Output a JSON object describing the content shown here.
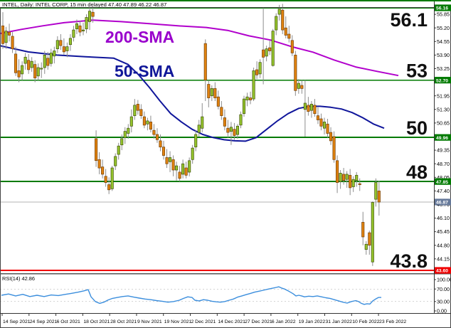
{
  "title_bar": {
    "text": "INTEL, Daily: INTEL CORP, 15 min delayed  47.40 47.89 46.22 46.87",
    "last_quote": {
      "open": 47.4,
      "high": 47.89,
      "low": 46.22,
      "close": 46.87
    }
  },
  "colors": {
    "background": "#ffffff",
    "up_candle": "#94c32c",
    "up_candle_border": "#41530a",
    "down_candle": "#e0820e",
    "down_candle_border": "#74400a",
    "wick": "#8c8c8c",
    "sma200_line": "#b100cc",
    "sma200_label": "#9900cc",
    "sma50_line": "#10169b",
    "sma50_label": "#101799",
    "level_green": "#007a00",
    "level_red": "#f00000",
    "current_price_line": "#b3b3b3",
    "current_badge_bg": "#66799a",
    "rsi_line": "#3b8edd",
    "axis_text": "#000000",
    "big_label": "#101010"
  },
  "chart_data": {
    "type": "candlestick",
    "title": "INTEL, Daily: INTEL CORP, 15 min delayed  47.40 47.89 46.22 46.87",
    "symbol": "INTEL CORP",
    "timeframe": "Daily",
    "ylim": [
      43.6,
      56.16
    ],
    "grid": false,
    "annotations": {
      "sma200_label": "200-SMA",
      "sma50_label": "50-SMA"
    },
    "levels": [
      {
        "value": 56.16,
        "badge": "56.16",
        "label": "56.1",
        "type": "green",
        "label_side": "below"
      },
      {
        "value": 52.7,
        "badge": "52.70",
        "label": "53",
        "type": "green",
        "label_side": "above"
      },
      {
        "value": 49.96,
        "badge": "49.96",
        "label": "50",
        "type": "green",
        "label_side": "above"
      },
      {
        "value": 47.85,
        "badge": "47.85",
        "label": "48",
        "type": "green",
        "label_side": "above"
      },
      {
        "value": 43.6,
        "badge": "43.60",
        "label": "43.8",
        "type": "red",
        "label_side": "above"
      }
    ],
    "current_price": {
      "value": 46.87,
      "badge": "46.87"
    },
    "price_axis_ticks": [
      "55.85",
      "55.20",
      "54.55",
      "53.90",
      "53.25",
      "51.95",
      "51.30",
      "50.65",
      "49.35",
      "48.70",
      "48.05",
      "47.40",
      "46.75",
      "46.10",
      "45.45",
      "44.80",
      "44.15"
    ],
    "x_axis_dates": [
      "14 Sep 2021",
      "24 Sep 2021",
      "6 Oct 2021",
      "18 Oct 2021",
      "28 Oct 2021",
      "9 Nov 2021",
      "19 Nov 2021",
      "2 Dec 2021",
      "14 Dec 2021",
      "27 Dec 2021",
      "6 Jan 2022",
      "19 Jan 2022",
      "31 Jan 2022",
      "10 Feb 2022",
      "23 Feb 2022"
    ],
    "candles_ohlc": [
      [
        55.3,
        55.95,
        54.2,
        54.45
      ],
      [
        54.5,
        55.25,
        54.2,
        55.05
      ],
      [
        55.0,
        55.4,
        54.55,
        54.85
      ],
      [
        54.8,
        55.0,
        54.0,
        54.2
      ],
      [
        53.95,
        54.3,
        52.9,
        53.05
      ],
      [
        53.15,
        53.7,
        52.6,
        52.85
      ],
      [
        53.0,
        53.6,
        52.7,
        53.4
      ],
      [
        53.5,
        54.0,
        53.2,
        53.8
      ],
      [
        53.65,
        53.95,
        53.0,
        53.2
      ],
      [
        53.3,
        53.8,
        53.1,
        53.6
      ],
      [
        53.45,
        53.65,
        52.6,
        52.8
      ],
      [
        52.9,
        53.5,
        52.7,
        53.3
      ],
      [
        53.25,
        53.55,
        52.8,
        53.25
      ],
      [
        53.3,
        54.1,
        53.0,
        53.9
      ],
      [
        53.75,
        54.05,
        53.2,
        53.4
      ],
      [
        53.5,
        54.2,
        53.35,
        54.0
      ],
      [
        53.85,
        54.3,
        53.5,
        54.1
      ],
      [
        54.2,
        54.8,
        54.0,
        54.6
      ],
      [
        54.6,
        54.9,
        54.15,
        54.35
      ],
      [
        54.3,
        54.7,
        53.9,
        54.05
      ],
      [
        54.1,
        54.5,
        53.8,
        54.3
      ],
      [
        54.4,
        54.9,
        54.1,
        54.7
      ],
      [
        54.75,
        55.3,
        54.55,
        55.1
      ],
      [
        55.15,
        55.6,
        54.9,
        55.4
      ],
      [
        55.3,
        55.55,
        54.8,
        55.0
      ],
      [
        55.05,
        55.45,
        54.85,
        55.1
      ],
      [
        55.15,
        55.85,
        54.95,
        55.7
      ],
      [
        55.5,
        56.2,
        55.1,
        56.0
      ],
      [
        55.95,
        56.35,
        55.45,
        55.75
      ],
      [
        49.9,
        50.3,
        48.55,
        48.85
      ],
      [
        48.9,
        49.25,
        48.2,
        48.5
      ],
      [
        48.55,
        48.9,
        48.0,
        48.2
      ],
      [
        48.1,
        48.45,
        47.6,
        47.8
      ],
      [
        47.7,
        48.05,
        47.25,
        47.45
      ],
      [
        47.5,
        48.6,
        47.4,
        48.5
      ],
      [
        48.6,
        49.2,
        48.4,
        49.05
      ],
      [
        49.15,
        49.7,
        48.9,
        49.55
      ],
      [
        49.6,
        50.1,
        49.35,
        49.9
      ],
      [
        49.95,
        50.45,
        49.65,
        50.25
      ],
      [
        50.15,
        50.6,
        49.9,
        50.4
      ],
      [
        50.5,
        51.3,
        50.2,
        50.95
      ],
      [
        51.0,
        51.8,
        50.8,
        51.5
      ],
      [
        51.55,
        51.75,
        51.05,
        51.25
      ],
      [
        51.3,
        51.55,
        50.85,
        51.0
      ],
      [
        50.95,
        51.2,
        50.4,
        50.55
      ],
      [
        50.6,
        50.9,
        50.3,
        50.75
      ],
      [
        50.7,
        51.0,
        50.2,
        50.35
      ],
      [
        50.3,
        50.6,
        49.9,
        50.1
      ],
      [
        50.1,
        50.4,
        49.7,
        49.85
      ],
      [
        49.8,
        50.1,
        49.3,
        49.5
      ],
      [
        49.5,
        49.8,
        48.9,
        49.1
      ],
      [
        49.0,
        49.4,
        48.5,
        48.7
      ],
      [
        48.8,
        49.3,
        48.3,
        49.0
      ],
      [
        48.9,
        49.1,
        48.1,
        48.4
      ],
      [
        48.4,
        48.8,
        47.9,
        48.6
      ],
      [
        48.3,
        48.6,
        47.85,
        48.0
      ],
      [
        48.2,
        48.9,
        48.0,
        48.7
      ],
      [
        48.5,
        48.8,
        48.0,
        48.15
      ],
      [
        48.3,
        49.0,
        48.1,
        48.85
      ],
      [
        48.9,
        49.6,
        48.7,
        49.45
      ],
      [
        49.5,
        50.3,
        49.3,
        50.1
      ],
      [
        50.2,
        50.8,
        50.0,
        50.55
      ],
      [
        50.4,
        51.6,
        50.2,
        50.95
      ],
      [
        54.45,
        54.65,
        51.7,
        52.7
      ],
      [
        52.5,
        52.7,
        51.4,
        51.85
      ],
      [
        51.95,
        52.45,
        51.7,
        52.3
      ],
      [
        52.3,
        52.6,
        51.7,
        51.85
      ],
      [
        51.9,
        52.2,
        51.3,
        51.45
      ],
      [
        51.4,
        51.7,
        50.8,
        51.0
      ],
      [
        50.9,
        51.3,
        50.3,
        50.5
      ],
      [
        50.4,
        50.8,
        49.95,
        50.2
      ],
      [
        50.25,
        50.7,
        49.6,
        50.45
      ],
      [
        50.35,
        50.65,
        49.85,
        50.05
      ],
      [
        50.1,
        50.6,
        49.9,
        50.5
      ],
      [
        50.55,
        51.2,
        50.4,
        51.05
      ],
      [
        51.1,
        51.95,
        50.95,
        51.8
      ],
      [
        51.75,
        52.1,
        51.45,
        51.9
      ],
      [
        51.85,
        52.15,
        51.55,
        51.75
      ],
      [
        51.8,
        53.3,
        51.7,
        53.15
      ],
      [
        53.2,
        53.6,
        52.75,
        52.95
      ],
      [
        53.0,
        53.7,
        52.8,
        53.55
      ],
      [
        54.15,
        56.15,
        52.5,
        53.8
      ],
      [
        53.85,
        54.35,
        53.6,
        54.2
      ],
      [
        54.25,
        54.6,
        53.9,
        54.1
      ],
      [
        53.4,
        55.15,
        53.35,
        55.05
      ],
      [
        55.1,
        55.9,
        54.85,
        55.75
      ],
      [
        55.85,
        56.3,
        55.55,
        56.1
      ],
      [
        56.05,
        56.35,
        54.9,
        55.1
      ],
      [
        55.2,
        55.75,
        54.7,
        54.85
      ],
      [
        54.9,
        55.3,
        54.5,
        54.7
      ],
      [
        54.6,
        54.85,
        53.85,
        54.0
      ],
      [
        53.9,
        54.1,
        51.95,
        52.2
      ],
      [
        52.3,
        52.75,
        52.05,
        52.55
      ],
      [
        52.45,
        52.7,
        52.05,
        52.3
      ],
      [
        51.3,
        52.7,
        50.0,
        51.6
      ],
      [
        51.5,
        51.9,
        51.0,
        51.2
      ],
      [
        51.25,
        51.7,
        50.9,
        51.55
      ],
      [
        51.5,
        51.8,
        50.95,
        51.1
      ],
      [
        51.0,
        51.4,
        50.6,
        50.8
      ],
      [
        50.85,
        51.1,
        50.3,
        50.5
      ],
      [
        50.4,
        50.9,
        50.1,
        50.7
      ],
      [
        50.6,
        50.85,
        49.95,
        50.15
      ],
      [
        50.2,
        50.45,
        49.6,
        49.8
      ],
      [
        50.0,
        50.25,
        48.75,
        48.9
      ],
      [
        48.85,
        49.1,
        47.3,
        47.8
      ],
      [
        47.85,
        48.4,
        47.5,
        48.25
      ],
      [
        48.2,
        48.5,
        47.7,
        47.9
      ],
      [
        47.95,
        48.35,
        47.55,
        48.2
      ],
      [
        48.15,
        48.45,
        47.2,
        47.55
      ],
      [
        47.6,
        48.1,
        47.35,
        47.95
      ],
      [
        47.9,
        48.3,
        47.6,
        48.15
      ],
      [
        47.75,
        48.0,
        47.4,
        47.7
      ],
      [
        45.9,
        46.4,
        44.8,
        45.2
      ],
      [
        44.6,
        45.0,
        44.35,
        44.85
      ],
      [
        45.4,
        45.5,
        44.35,
        44.8
      ],
      [
        44.0,
        46.9,
        43.81,
        46.85
      ],
      [
        47.0,
        48.0,
        46.65,
        47.8
      ],
      [
        47.4,
        47.89,
        46.22,
        46.87
      ]
    ],
    "sma200": [
      [
        0,
        54.93
      ],
      [
        30,
        55.13
      ],
      [
        60,
        55.3
      ],
      [
        90,
        55.45
      ],
      [
        130,
        55.57
      ],
      [
        170,
        55.5
      ],
      [
        210,
        55.4
      ],
      [
        250,
        55.3
      ],
      [
        290,
        55.22
      ],
      [
        320,
        55.08
      ],
      [
        350,
        54.82
      ],
      [
        380,
        54.62
      ],
      [
        410,
        54.3
      ],
      [
        440,
        54.04
      ],
      [
        470,
        53.66
      ],
      [
        500,
        53.33
      ],
      [
        530,
        53.12
      ],
      [
        560,
        52.92
      ]
    ],
    "sma50": [
      [
        0,
        54.35
      ],
      [
        40,
        54.05
      ],
      [
        80,
        53.9
      ],
      [
        120,
        53.82
      ],
      [
        160,
        53.75
      ],
      [
        180,
        53.45
      ],
      [
        195,
        52.95
      ],
      [
        210,
        52.35
      ],
      [
        225,
        51.7
      ],
      [
        240,
        51.1
      ],
      [
        255,
        50.7
      ],
      [
        270,
        50.35
      ],
      [
        285,
        50.1
      ],
      [
        300,
        49.95
      ],
      [
        315,
        49.85
      ],
      [
        330,
        49.8
      ],
      [
        345,
        49.78
      ],
      [
        360,
        49.95
      ],
      [
        375,
        50.35
      ],
      [
        390,
        50.75
      ],
      [
        405,
        51.1
      ],
      [
        420,
        51.35
      ],
      [
        435,
        51.45
      ],
      [
        450,
        51.45
      ],
      [
        465,
        51.4
      ],
      [
        480,
        51.32
      ],
      [
        495,
        51.15
      ],
      [
        510,
        50.9
      ],
      [
        525,
        50.6
      ],
      [
        540,
        50.4
      ]
    ],
    "rsi_panel": {
      "label": "RSI(14) 42.86",
      "value": 42.86,
      "range": [
        0,
        100
      ],
      "guides": [
        70,
        30
      ],
      "axis_ticks": [
        {
          "label": "100.00",
          "v": 100
        },
        {
          "label": "70.00",
          "v": 70
        },
        {
          "label": "30.00",
          "v": 30
        },
        {
          "label": "0.00",
          "v": 0
        }
      ],
      "points": [
        [
          2,
          50
        ],
        [
          12,
          54
        ],
        [
          22,
          48
        ],
        [
          32,
          53
        ],
        [
          42,
          46
        ],
        [
          52,
          50
        ],
        [
          62,
          46
        ],
        [
          72,
          51
        ],
        [
          82,
          49
        ],
        [
          92,
          53
        ],
        [
          100,
          56
        ],
        [
          110,
          60
        ],
        [
          118,
          64
        ],
        [
          124,
          68
        ],
        [
          128,
          45
        ],
        [
          134,
          30
        ],
        [
          140,
          24
        ],
        [
          146,
          28
        ],
        [
          152,
          35
        ],
        [
          158,
          40
        ],
        [
          165,
          43
        ],
        [
          172,
          46
        ],
        [
          180,
          48
        ],
        [
          188,
          44
        ],
        [
          196,
          41
        ],
        [
          204,
          38
        ],
        [
          212,
          36
        ],
        [
          220,
          33
        ],
        [
          228,
          31
        ],
        [
          236,
          28
        ],
        [
          244,
          30
        ],
        [
          252,
          34
        ],
        [
          258,
          40
        ],
        [
          264,
          45
        ],
        [
          270,
          43
        ],
        [
          274,
          34
        ],
        [
          280,
          32
        ],
        [
          286,
          36
        ],
        [
          292,
          34
        ],
        [
          298,
          31
        ],
        [
          304,
          29
        ],
        [
          310,
          28
        ],
        [
          316,
          30
        ],
        [
          322,
          34
        ],
        [
          328,
          38
        ],
        [
          334,
          44
        ],
        [
          340,
          48
        ],
        [
          346,
          52
        ],
        [
          352,
          56
        ],
        [
          358,
          60
        ],
        [
          364,
          63
        ],
        [
          370,
          66
        ],
        [
          376,
          69
        ],
        [
          382,
          72
        ],
        [
          388,
          75
        ],
        [
          392,
          77
        ],
        [
          396,
          73
        ],
        [
          400,
          70
        ],
        [
          406,
          63
        ],
        [
          412,
          55
        ],
        [
          416,
          48
        ],
        [
          420,
          50
        ],
        [
          424,
          48
        ],
        [
          428,
          45
        ],
        [
          434,
          47
        ],
        [
          440,
          46
        ],
        [
          446,
          48
        ],
        [
          452,
          45
        ],
        [
          458,
          42
        ],
        [
          464,
          40
        ],
        [
          470,
          36
        ],
        [
          476,
          32
        ],
        [
          482,
          28
        ],
        [
          488,
          25
        ],
        [
          494,
          30
        ],
        [
          500,
          33
        ],
        [
          504,
          30
        ],
        [
          508,
          24
        ],
        [
          512,
          21
        ],
        [
          516,
          23
        ],
        [
          520,
          22
        ],
        [
          524,
          32
        ],
        [
          528,
          38
        ],
        [
          532,
          43
        ],
        [
          536,
          42.86
        ]
      ]
    }
  }
}
